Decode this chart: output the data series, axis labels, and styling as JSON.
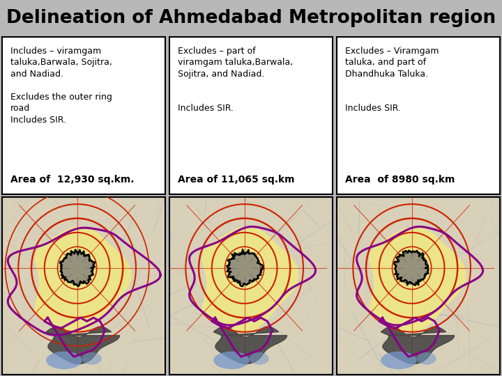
{
  "title": "Delineation of Ahmedabad Metropolitan region",
  "title_bg_color": "#b8b8b8",
  "title_font_size": 19,
  "title_font_weight": "bold",
  "panel_bg_color": "#ffffff",
  "panel_border_color": "#000000",
  "panel_texts": [
    "Includes – viramgam\ntaluka,Barwala, Sojitra,\nand Nadiad.\n\nExcludes the outer ring\nroad\nIncludes SIR.",
    "Excludes – part of\nviramgam taluka,Barwala,\nSojitra, and Nadiad.\n\n\nIncludes SIR.",
    "Excludes – Viramgam\ntaluka, and part of\nDhandhuka Taluka.\n\n\nIncludes SIR."
  ],
  "area_texts": [
    "Area of  12,930 sq.km.",
    "Area of 11,065 sq.km",
    "Area  of 8980 sq.km"
  ],
  "map_bg_color": "#d8d0b8",
  "yellow_color": "#f0e880",
  "purple_color": "#880088",
  "red_color": "#cc2200",
  "dark_gray": "#505050",
  "blue_color": "#7799cc",
  "text_fontsize": 9,
  "area_fontsize": 10
}
